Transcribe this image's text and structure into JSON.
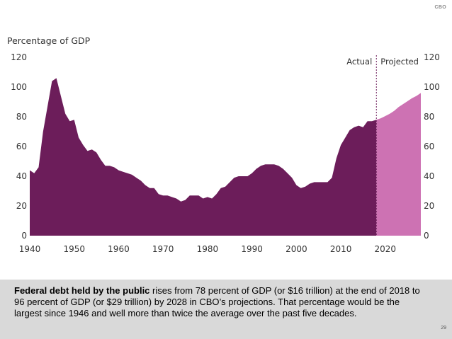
{
  "logo": "CBO",
  "page_number": "29",
  "colors": {
    "actual": "#6c1d5a",
    "projected": "#cd72b3",
    "divider": "#6c1d5a"
  },
  "caption": {
    "bold": "Federal debt held by the public",
    "rest": " rises from 78 percent of GDP (or $16 trillion) at the end of 2018 to 96 percent of GDP (or $29 trillion) by 2028 in CBO’s projections. That percentage would be the largest since 1946 and well more than twice the average over the past five decades."
  },
  "chart_data": {
    "type": "area",
    "ylabel": "Percentage of GDP",
    "ylim": [
      0,
      120
    ],
    "xlim": [
      1940,
      2028
    ],
    "yticks": [
      "0",
      "20",
      "40",
      "60",
      "80",
      "100",
      "120"
    ],
    "xticks": [
      "1940",
      "1950",
      "1960",
      "1970",
      "1980",
      "1990",
      "2000",
      "2010",
      "2020"
    ],
    "legend": {
      "actual": "Actual",
      "projected": "Projected"
    },
    "series": [
      {
        "name": "Actual",
        "x": [
          1940,
          1941,
          1942,
          1943,
          1944,
          1945,
          1946,
          1947,
          1948,
          1949,
          1950,
          1951,
          1952,
          1953,
          1954,
          1955,
          1956,
          1957,
          1958,
          1959,
          1960,
          1961,
          1962,
          1963,
          1964,
          1965,
          1966,
          1967,
          1968,
          1969,
          1970,
          1971,
          1972,
          1973,
          1974,
          1975,
          1976,
          1977,
          1978,
          1979,
          1980,
          1981,
          1982,
          1983,
          1984,
          1985,
          1986,
          1987,
          1988,
          1989,
          1990,
          1991,
          1992,
          1993,
          1994,
          1995,
          1996,
          1997,
          1998,
          1999,
          2000,
          2001,
          2002,
          2003,
          2004,
          2005,
          2006,
          2007,
          2008,
          2009,
          2010,
          2011,
          2012,
          2013,
          2014,
          2015,
          2016,
          2017,
          2018
        ],
        "values": [
          44,
          42,
          46,
          70,
          87,
          104,
          106,
          94,
          82,
          77,
          78,
          66,
          61,
          57,
          58,
          56,
          51,
          47,
          47,
          46,
          44,
          43,
          42,
          41,
          39,
          37,
          34,
          32,
          32,
          28,
          27,
          27,
          26,
          25,
          23,
          24,
          27,
          27,
          27,
          25,
          26,
          25,
          28,
          32,
          33,
          36,
          39,
          40,
          40,
          40,
          42,
          45,
          47,
          48,
          48,
          48,
          47,
          45,
          42,
          39,
          34,
          32,
          33,
          35,
          36,
          36,
          36,
          36,
          39,
          52,
          61,
          66,
          71,
          73,
          74,
          73,
          77,
          77,
          78
        ]
      },
      {
        "name": "Projected",
        "x": [
          2018,
          2019,
          2020,
          2021,
          2022,
          2023,
          2024,
          2025,
          2026,
          2027,
          2028
        ],
        "values": [
          78,
          79,
          80.5,
          82,
          84,
          86.5,
          88.5,
          90.5,
          92.5,
          94,
          96
        ]
      }
    ]
  }
}
